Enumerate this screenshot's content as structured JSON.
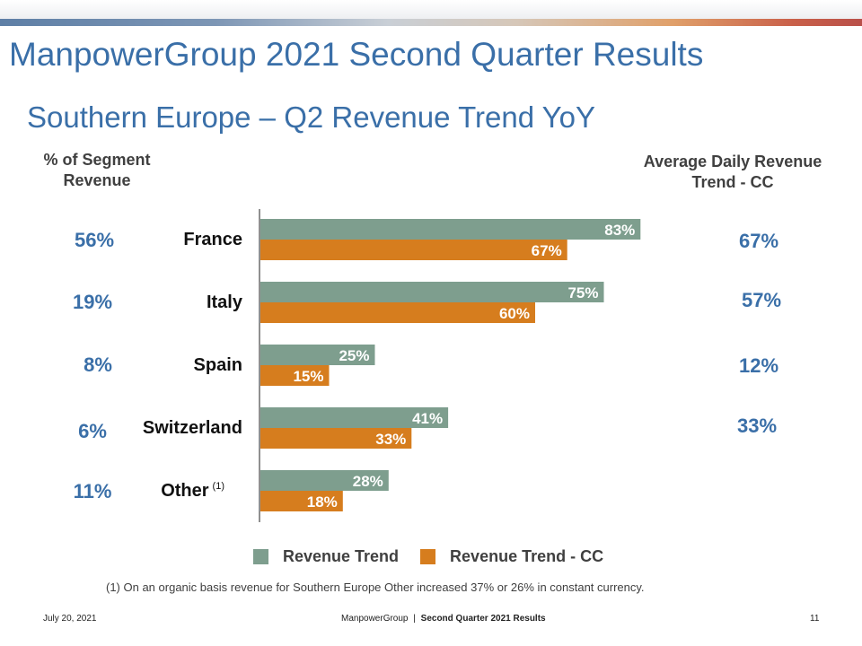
{
  "header": {
    "title": "ManpowerGroup 2021 Second Quarter Results",
    "subtitle": "Southern Europe – Q2 Revenue Trend YoY"
  },
  "left_header": "% of Segment Revenue",
  "right_header": "Average Daily Revenue Trend - CC",
  "segment_pct": [
    "56%",
    "19%",
    "8%",
    "6%",
    "11%"
  ],
  "adr_cc": [
    "67%",
    "57%",
    "12%",
    "33%"
  ],
  "colors": {
    "revenue_trend": "#7e9e8e",
    "revenue_trend_cc": "#d67d1e",
    "accent_blue": "#3a6fa8"
  },
  "chart_data": {
    "type": "bar",
    "orientation": "horizontal",
    "categories": [
      "France",
      "Italy",
      "Spain",
      "Switzerland",
      "Other"
    ],
    "category_notes": [
      "",
      "",
      "",
      "",
      "(1)"
    ],
    "series": [
      {
        "name": "Revenue Trend",
        "values": [
          83,
          75,
          25,
          41,
          28
        ],
        "labels": [
          "83%",
          "75%",
          "25%",
          "41%",
          "28%"
        ]
      },
      {
        "name": "Revenue Trend - CC",
        "values": [
          67,
          60,
          15,
          33,
          18
        ],
        "labels": [
          "67%",
          "60%",
          "15%",
          "33%",
          "18%"
        ]
      }
    ],
    "xlim": [
      0,
      85
    ],
    "legend": "bottom"
  },
  "footnote": "(1)  On an organic basis revenue for Southern Europe Other increased 37% or 26% in constant currency.",
  "footer": {
    "date": "July 20, 2021",
    "company": "ManpowerGroup",
    "separator": "|",
    "report": "Second Quarter 2021 Results",
    "page": "11"
  }
}
